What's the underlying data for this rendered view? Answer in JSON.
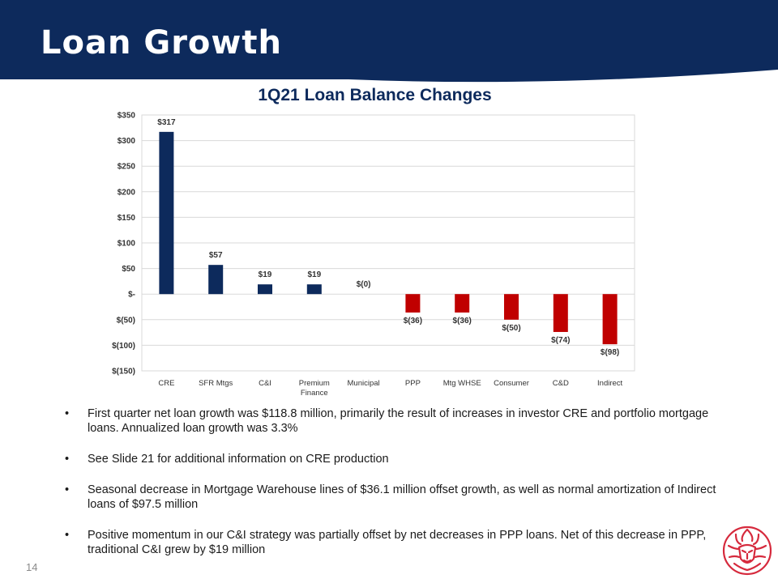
{
  "slide": {
    "title": "Loan Growth",
    "page_number": "14"
  },
  "colors": {
    "header": "#0d2a5c",
    "positive": "#0d2a5c",
    "negative": "#c00000",
    "logo": "#d62a3d"
  },
  "icons": {
    "logo": "lion-head-logo-icon"
  },
  "chart_data": {
    "type": "bar",
    "title": "1Q21 Loan Balance Changes",
    "categories": [
      "CRE",
      "SFR Mtgs",
      "C&I",
      "Premium Finance",
      "Municipal",
      "PPP",
      "Mtg WHSE",
      "Consumer",
      "C&D",
      "Indirect"
    ],
    "values": [
      317,
      57,
      19,
      19,
      0,
      -36,
      -36,
      -50,
      -74,
      -98
    ],
    "value_labels": [
      "$317",
      "$57",
      "$19",
      "$19",
      "$(0)",
      "$(36)",
      "$(36)",
      "$(50)",
      "$(74)",
      "$(98)"
    ],
    "ylim": [
      -150,
      350
    ],
    "yticks": [
      350,
      300,
      250,
      200,
      150,
      100,
      50,
      0,
      -50,
      -100,
      -150
    ],
    "ytick_labels": [
      "$350",
      "$300",
      "$250",
      "$200",
      "$150",
      "$100",
      "$50",
      "$-",
      "$(50)",
      "$(100)",
      "$(150)"
    ],
    "grid": true,
    "legend": "none",
    "xlabel": "",
    "ylabel": ""
  },
  "bullets": [
    "First quarter net loan growth was $118.8 million, primarily the result of increases in investor CRE and portfolio mortgage loans.  Annualized loan growth was 3.3%",
    "See Slide 21 for additional information on CRE production",
    "Seasonal decrease in Mortgage Warehouse lines of $36.1 million offset growth, as well as normal amortization of Indirect loans of $97.5 million",
    "Positive momentum  in our C&I strategy was partially offset by net decreases in PPP loans. Net of this decrease in PPP, traditional C&I grew by $19 million"
  ]
}
